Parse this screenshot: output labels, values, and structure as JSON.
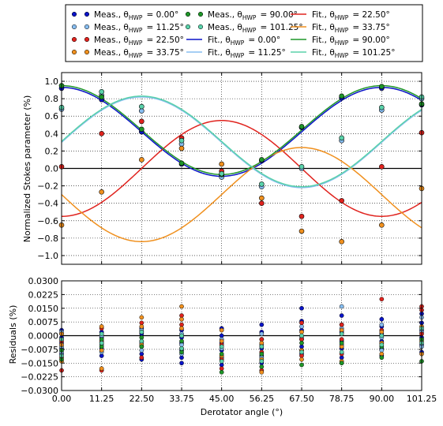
{
  "chart_data": [
    {
      "type": "line",
      "panel": "top",
      "ylabel": "Normalized Stokes parameter (%)",
      "xlim": [
        0,
        101.25
      ],
      "ylim": [
        -1.1,
        1.1
      ],
      "yticks": [
        -1.0,
        -0.8,
        -0.6,
        -0.4,
        -0.2,
        0.0,
        0.2,
        0.4,
        0.6,
        0.8,
        1.0
      ],
      "ytick_labels": [
        "−1.0",
        "−0.8",
        "−0.6",
        "−0.4",
        "−0.2",
        "0.0",
        "0.2",
        "0.4",
        "0.6",
        "0.8",
        "1.0"
      ],
      "grid": true,
      "x": [
        0,
        11.25,
        22.5,
        33.75,
        45,
        56.25,
        67.5,
        78.75,
        90,
        101.25
      ],
      "series": [
        {
          "name": "Meas., θHWP = 0.00°",
          "kind": "points",
          "color": "#0a14c8",
          "values": [
            0.92,
            0.79,
            0.42,
            0.05,
            -0.08,
            0.09,
            0.47,
            0.81,
            0.92,
            0.73
          ]
        },
        {
          "name": "Meas., θHWP = 11.25°",
          "kind": "points",
          "color": "#87bdf0",
          "values": [
            0.68,
            0.84,
            0.66,
            0.28,
            -0.1,
            -0.21,
            0.0,
            0.32,
            0.67,
            0.8
          ]
        },
        {
          "name": "Meas., θHWP = 22.50°",
          "kind": "points",
          "color": "#e0231e",
          "values": [
            0.02,
            0.4,
            0.54,
            0.35,
            -0.03,
            -0.4,
            -0.55,
            -0.37,
            0.02,
            0.41
          ]
        },
        {
          "name": "Meas., θHWP = 33.75°",
          "kind": "points",
          "color": "#f0901e",
          "values": [
            -0.65,
            -0.27,
            0.1,
            0.23,
            0.05,
            -0.34,
            -0.72,
            -0.84,
            -0.65,
            -0.23
          ]
        },
        {
          "name": "Meas., θHWP = 90.00°",
          "kind": "points",
          "color": "#1e9628",
          "values": [
            0.95,
            0.82,
            0.45,
            0.06,
            -0.07,
            0.1,
            0.48,
            0.83,
            0.94,
            0.74
          ]
        },
        {
          "name": "Meas., θHWP = 101.25°",
          "kind": "points",
          "color": "#5ad2aa",
          "values": [
            0.7,
            0.88,
            0.71,
            0.32,
            -0.06,
            -0.18,
            0.02,
            0.35,
            0.7,
            0.82
          ]
        },
        {
          "name": "Fit., θHWP = 0.00°",
          "kind": "fit",
          "color": "#0a14c8",
          "mean": 0.42,
          "amp": 0.51,
          "phase_deg": 0
        },
        {
          "name": "Fit., θHWP = 11.25°",
          "kind": "fit",
          "color": "#87bdf0",
          "mean": 0.3,
          "amp": 0.52,
          "phase_deg": 22.5
        },
        {
          "name": "Fit., θHWP = 22.50°",
          "kind": "fit",
          "color": "#e0231e",
          "mean": 0.0,
          "amp": 0.55,
          "phase_deg": 45
        },
        {
          "name": "Fit., θHWP = 33.75°",
          "kind": "fit",
          "color": "#f0901e",
          "mean": -0.3,
          "amp": 0.54,
          "phase_deg": 67.5
        },
        {
          "name": "Fit., θHWP = 90.00°",
          "kind": "fit",
          "color": "#1e9628",
          "mean": 0.44,
          "amp": 0.51,
          "phase_deg": 0
        },
        {
          "name": "Fit., θHWP = 101.25°",
          "kind": "fit",
          "color": "#5ad2aa",
          "mean": 0.31,
          "amp": 0.52,
          "phase_deg": 22.5
        }
      ]
    },
    {
      "type": "scatter",
      "panel": "bottom",
      "xlabel": "Derotator angle (°)",
      "ylabel": "Residuals (%)",
      "xlim": [
        0,
        101.25
      ],
      "ylim": [
        -0.03,
        0.03
      ],
      "xticks": [
        0,
        11.25,
        22.5,
        33.75,
        45,
        56.25,
        67.5,
        78.75,
        90,
        101.25
      ],
      "xtick_labels": [
        "0.00",
        "11.25",
        "22.50",
        "33.75",
        "45.00",
        "56.25",
        "67.50",
        "78.75",
        "90.00",
        "101.25"
      ],
      "yticks": [
        -0.03,
        -0.0225,
        -0.015,
        -0.0075,
        0,
        0.0075,
        0.015,
        0.0225,
        0.03
      ],
      "ytick_labels": [
        "−0.0300",
        "−0.0225",
        "−0.0150",
        "−0.0075",
        "0.0000",
        "0.0075",
        "0.0150",
        "0.0225",
        "0.0300"
      ],
      "grid": true,
      "groups": [
        {
          "x": 0,
          "points": [
            {
              "c": "#0a14c8",
              "v": [
                0.003,
                0.001,
                -0.001,
                -0.004,
                -0.007,
                -0.01
              ]
            },
            {
              "c": "#87bdf0",
              "v": [
                0.002,
                -0.002,
                -0.006,
                -0.009
              ]
            },
            {
              "c": "#e0231e",
              "v": [
                -0.003,
                -0.012,
                -0.019
              ]
            },
            {
              "c": "#f0901e",
              "v": [
                0.001,
                -0.005,
                -0.014
              ]
            },
            {
              "c": "#1e9628",
              "v": [
                -0.008,
                -0.013
              ]
            },
            {
              "c": "#5ad2aa",
              "v": [
                -0.002,
                -0.011
              ]
            }
          ]
        },
        {
          "x": 11.25,
          "points": [
            {
              "c": "#0a14c8",
              "v": [
                0.002,
                -0.001,
                -0.004,
                -0.007,
                -0.011
              ]
            },
            {
              "c": "#87bdf0",
              "v": [
                0.0,
                -0.005,
                -0.009
              ]
            },
            {
              "c": "#e0231e",
              "v": [
                0.004,
                -0.003,
                -0.019
              ]
            },
            {
              "c": "#f0901e",
              "v": [
                0.005,
                -0.008,
                -0.018
              ]
            },
            {
              "c": "#1e9628",
              "v": [
                -0.002,
                -0.006
              ]
            },
            {
              "c": "#5ad2aa",
              "v": [
                0.001,
                -0.004
              ]
            }
          ]
        },
        {
          "x": 22.5,
          "points": [
            {
              "c": "#0a14c8",
              "v": [
                0.004,
                0.001,
                -0.003,
                -0.006,
                -0.01,
                -0.013
              ]
            },
            {
              "c": "#87bdf0",
              "v": [
                0.003,
                -0.004,
                -0.008
              ]
            },
            {
              "c": "#e0231e",
              "v": [
                0.007,
                0.002,
                -0.012
              ]
            },
            {
              "c": "#f0901e",
              "v": [
                0.01,
                0.005,
                -0.005
              ]
            },
            {
              "c": "#1e9628",
              "v": [
                -0.001,
                -0.006
              ]
            },
            {
              "c": "#5ad2aa",
              "v": [
                0.002,
                -0.003
              ]
            }
          ]
        },
        {
          "x": 33.75,
          "points": [
            {
              "c": "#0a14c8",
              "v": [
                0.003,
                -0.001,
                -0.004,
                -0.008,
                -0.012,
                -0.015
              ]
            },
            {
              "c": "#87bdf0",
              "v": [
                0.001,
                -0.005,
                -0.01
              ]
            },
            {
              "c": "#e0231e",
              "v": [
                0.011,
                0.006,
                -0.007
              ]
            },
            {
              "c": "#f0901e",
              "v": [
                0.016,
                0.009,
                0.004
              ]
            },
            {
              "c": "#1e9628",
              "v": [
                -0.003,
                -0.009
              ]
            },
            {
              "c": "#5ad2aa",
              "v": [
                0.0,
                -0.007
              ]
            }
          ]
        },
        {
          "x": 45,
          "points": [
            {
              "c": "#0a14c8",
              "v": [
                0.004,
                0.0,
                -0.004,
                -0.008,
                -0.012,
                -0.016
              ]
            },
            {
              "c": "#87bdf0",
              "v": [
                -0.002,
                -0.007,
                -0.012
              ]
            },
            {
              "c": "#e0231e",
              "v": [
                -0.005,
                -0.013,
                -0.018
              ]
            },
            {
              "c": "#f0901e",
              "v": [
                0.003,
                -0.003,
                -0.011
              ]
            },
            {
              "c": "#1e9628",
              "v": [
                -0.01,
                -0.02
              ]
            },
            {
              "c": "#5ad2aa",
              "v": [
                -0.006,
                -0.014
              ]
            }
          ]
        },
        {
          "x": 56.25,
          "points": [
            {
              "c": "#0a14c8",
              "v": [
                0.006,
                0.002,
                -0.002,
                -0.007,
                -0.011,
                -0.015
              ]
            },
            {
              "c": "#87bdf0",
              "v": [
                0.001,
                -0.005,
                -0.012
              ]
            },
            {
              "c": "#e0231e",
              "v": [
                -0.002,
                -0.009,
                -0.019
              ]
            },
            {
              "c": "#f0901e",
              "v": [
                -0.004,
                -0.013,
                -0.02
              ]
            },
            {
              "c": "#1e9628",
              "v": [
                -0.01,
                -0.017
              ]
            },
            {
              "c": "#5ad2aa",
              "v": [
                -0.006,
                -0.014
              ]
            }
          ]
        },
        {
          "x": 67.5,
          "points": [
            {
              "c": "#0a14c8",
              "v": [
                0.015,
                0.008,
                0.003,
                -0.002,
                -0.006,
                -0.01
              ]
            },
            {
              "c": "#87bdf0",
              "v": [
                0.005,
                -0.001,
                -0.008
              ]
            },
            {
              "c": "#e0231e",
              "v": [
                0.007,
                -0.002,
                -0.011
              ]
            },
            {
              "c": "#f0901e",
              "v": [
                0.002,
                -0.008,
                -0.013
              ]
            },
            {
              "c": "#1e9628",
              "v": [
                -0.004,
                -0.016
              ]
            },
            {
              "c": "#5ad2aa",
              "v": [
                0.0,
                -0.009
              ]
            }
          ]
        },
        {
          "x": 78.75,
          "points": [
            {
              "c": "#0a14c8",
              "v": [
                0.011,
                0.006,
                0.002,
                -0.003,
                -0.007,
                -0.012
              ]
            },
            {
              "c": "#87bdf0",
              "v": [
                0.016,
                0.004,
                -0.005
              ]
            },
            {
              "c": "#e0231e",
              "v": [
                0.006,
                -0.002,
                -0.01
              ]
            },
            {
              "c": "#f0901e",
              "v": [
                0.003,
                -0.006,
                -0.014
              ]
            },
            {
              "c": "#1e9628",
              "v": [
                -0.004,
                -0.015
              ]
            },
            {
              "c": "#5ad2aa",
              "v": [
                0.001,
                -0.009
              ]
            }
          ]
        },
        {
          "x": 90,
          "points": [
            {
              "c": "#0a14c8",
              "v": [
                0.009,
                0.005,
                0.001,
                -0.003,
                -0.007,
                -0.011
              ]
            },
            {
              "c": "#87bdf0",
              "v": [
                0.006,
                -0.001,
                -0.008
              ]
            },
            {
              "c": "#e0231e",
              "v": [
                0.02,
                0.003,
                -0.004
              ]
            },
            {
              "c": "#f0901e",
              "v": [
                0.002,
                -0.004,
                -0.01
              ]
            },
            {
              "c": "#1e9628",
              "v": [
                -0.006,
                -0.012
              ]
            },
            {
              "c": "#5ad2aa",
              "v": [
                0.0,
                -0.005
              ]
            }
          ]
        },
        {
          "x": 101.25,
          "points": [
            {
              "c": "#0a14c8",
              "v": [
                0.012,
                0.007,
                0.003,
                -0.001,
                -0.005,
                -0.009
              ]
            },
            {
              "c": "#87bdf0",
              "v": [
                0.01,
                0.002,
                -0.006
              ]
            },
            {
              "c": "#e0231e",
              "v": [
                0.016,
                0.014,
                0.001
              ]
            },
            {
              "c": "#f0901e",
              "v": [
                0.005,
                -0.003,
                -0.01
              ]
            },
            {
              "c": "#1e9628",
              "v": [
                -0.002,
                -0.014
              ]
            },
            {
              "c": "#5ad2aa",
              "v": [
                0.004,
                -0.004
              ]
            }
          ]
        }
      ]
    }
  ],
  "legend": {
    "placement": "top",
    "items": [
      {
        "kind": "marker",
        "color": "#0a14c8",
        "text": "Meas., θ",
        "sub": "HWP",
        "val": "= 0.00°"
      },
      {
        "kind": "marker",
        "color": "#87bdf0",
        "text": "Meas., θ",
        "sub": "HWP",
        "val": "= 11.25°"
      },
      {
        "kind": "marker",
        "color": "#e0231e",
        "text": "Meas., θ",
        "sub": "HWP",
        "val": "= 22.50°"
      },
      {
        "kind": "marker",
        "color": "#f0901e",
        "text": "Meas., θ",
        "sub": "HWP",
        "val": "= 33.75°"
      },
      {
        "kind": "marker",
        "color": "#1e9628",
        "text": "Meas., θ",
        "sub": "HWP",
        "val": "= 90.00°"
      },
      {
        "kind": "marker",
        "color": "#5ad2aa",
        "text": "Meas., θ",
        "sub": "HWP",
        "val": "= 101.25°"
      },
      {
        "kind": "line",
        "color": "#0a14c8",
        "text": "Fit., θ",
        "sub": "HWP",
        "val": "= 0.00°"
      },
      {
        "kind": "line",
        "color": "#87bdf0",
        "text": "Fit., θ",
        "sub": "HWP",
        "val": "= 11.25°"
      },
      {
        "kind": "line",
        "color": "#e0231e",
        "text": "Fit., θ",
        "sub": "HWP",
        "val": "= 22.50°"
      },
      {
        "kind": "line",
        "color": "#f0901e",
        "text": "Fit., θ",
        "sub": "HWP",
        "val": "= 33.75°"
      },
      {
        "kind": "line",
        "color": "#1e9628",
        "text": "Fit., θ",
        "sub": "HWP",
        "val": "= 90.00°"
      },
      {
        "kind": "line",
        "color": "#5ad2aa",
        "text": "Fit., θ",
        "sub": "HWP",
        "val": "= 101.25°"
      }
    ]
  }
}
